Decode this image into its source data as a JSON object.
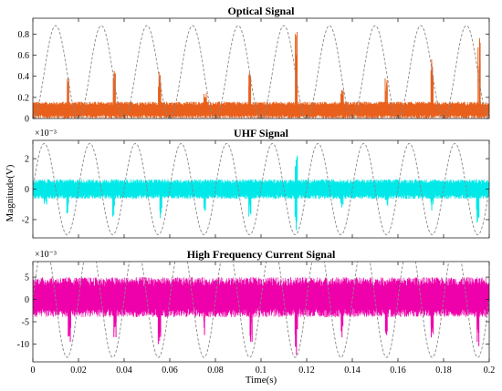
{
  "chart_data": [
    {
      "type": "line",
      "title": "Optical Signal",
      "xlabel": "",
      "ylabel": "",
      "exponent": "",
      "xlim": [
        0,
        0.2
      ],
      "ylim": [
        0,
        0.95
      ],
      "xticks": [
        0,
        0.02,
        0.04,
        0.06,
        0.08,
        0.1,
        0.12,
        0.14,
        0.16,
        0.18,
        0.2
      ],
      "xtick_labels": [
        "",
        "",
        "",
        "",
        "",
        "",
        "",
        "",
        "",
        "",
        ""
      ],
      "yticks": [
        0,
        0.2,
        0.4,
        0.6,
        0.8
      ],
      "ytick_labels": [
        "0",
        "0.2",
        "0.4",
        "0.6",
        "0.8"
      ],
      "grid": false,
      "series": [
        {
          "kind": "noise-pulses",
          "color": "#e8601c",
          "baseline": 0.08,
          "noise_amplitude": 0.08,
          "pulses": [
            {
              "x": 0.0155,
              "y": 0.38
            },
            {
              "x": 0.0358,
              "y": 0.45
            },
            {
              "x": 0.0555,
              "y": 0.44
            },
            {
              "x": 0.0755,
              "y": 0.24
            },
            {
              "x": 0.095,
              "y": 0.43
            },
            {
              "x": 0.1155,
              "y": 0.82
            },
            {
              "x": 0.1355,
              "y": 0.27
            },
            {
              "x": 0.155,
              "y": 0.38
            },
            {
              "x": 0.175,
              "y": 0.56
            },
            {
              "x": 0.1955,
              "y": 0.76
            }
          ]
        },
        {
          "kind": "sine",
          "color": "#888888",
          "dashed": true,
          "frequency": 50,
          "amplitude": 0.44,
          "offset": 0.44,
          "phase": 0
        }
      ]
    },
    {
      "type": "line",
      "title": "UHF Signal",
      "xlabel": "",
      "ylabel": "Magnitude(V)",
      "exponent": "×10⁻³",
      "xlim": [
        0,
        0.2
      ],
      "ylim": [
        -3.2,
        3.2
      ],
      "xticks": [
        0,
        0.02,
        0.04,
        0.06,
        0.08,
        0.1,
        0.12,
        0.14,
        0.16,
        0.18,
        0.2
      ],
      "xtick_labels": [
        "",
        "",
        "",
        "",
        "",
        "",
        "",
        "",
        "",
        "",
        ""
      ],
      "yticks": [
        -2,
        0,
        2
      ],
      "ytick_labels": [
        "-2",
        "0",
        "2"
      ],
      "grid": false,
      "series": [
        {
          "kind": "noise-pulses",
          "color": "#00e8e8",
          "baseline": 0,
          "noise_amplitude": 0.65,
          "pulses": [
            {
              "x": 0.0155,
              "y": -1.6
            },
            {
              "x": 0.0355,
              "y": -1.8
            },
            {
              "x": 0.056,
              "y": -1.9
            },
            {
              "x": 0.0755,
              "y": -1.4
            },
            {
              "x": 0.095,
              "y": -1.8
            },
            {
              "x": 0.1155,
              "y": -2.7
            },
            {
              "x": 0.1355,
              "y": -1.2
            },
            {
              "x": 0.155,
              "y": -1.1
            },
            {
              "x": 0.175,
              "y": -1.4
            },
            {
              "x": 0.195,
              "y": -2.2
            },
            {
              "x": 0.0055,
              "y": -1.0
            },
            {
              "x": 0.1155,
              "y": 2.2
            }
          ]
        },
        {
          "kind": "sine",
          "color": "#888888",
          "dashed": true,
          "frequency": 50,
          "amplitude": 3.0,
          "offset": 0,
          "phase": 0
        }
      ]
    },
    {
      "type": "line",
      "title": "High Frequency Current Signal",
      "xlabel": "Time(s)",
      "ylabel": "",
      "exponent": "×10⁻³",
      "xlim": [
        0,
        0.2
      ],
      "ylim": [
        -14,
        8.5
      ],
      "xticks": [
        0,
        0.02,
        0.04,
        0.06,
        0.08,
        0.1,
        0.12,
        0.14,
        0.16,
        0.18,
        0.2
      ],
      "xtick_labels": [
        "0",
        "0.02",
        "0.04",
        "0.06",
        "0.08",
        "0.1",
        "0.12",
        "0.14",
        "0.16",
        "0.18",
        "0.2"
      ],
      "yticks": [
        -10,
        -5,
        0,
        5
      ],
      "ytick_labels": [
        "-10",
        "-5",
        "0",
        "5"
      ],
      "grid": false,
      "series": [
        {
          "kind": "noise-pulses",
          "color": "#ee00aa",
          "baseline": 0.5,
          "noise_amplitude": 4.5,
          "pulses": [
            {
              "x": 0.016,
              "y": -9.5
            },
            {
              "x": 0.036,
              "y": -8.5
            },
            {
              "x": 0.0555,
              "y": -10.0
            },
            {
              "x": 0.0755,
              "y": -8.0
            },
            {
              "x": 0.0955,
              "y": -9.5
            },
            {
              "x": 0.1155,
              "y": -12.5
            },
            {
              "x": 0.1355,
              "y": -8.5
            },
            {
              "x": 0.155,
              "y": -8.0
            },
            {
              "x": 0.175,
              "y": -8.5
            },
            {
              "x": 0.195,
              "y": -10.5
            }
          ]
        },
        {
          "kind": "sine",
          "color": "#888888",
          "dashed": true,
          "frequency": 50,
          "amplitude": 13.0,
          "offset": 0,
          "phase": 0
        }
      ]
    }
  ]
}
